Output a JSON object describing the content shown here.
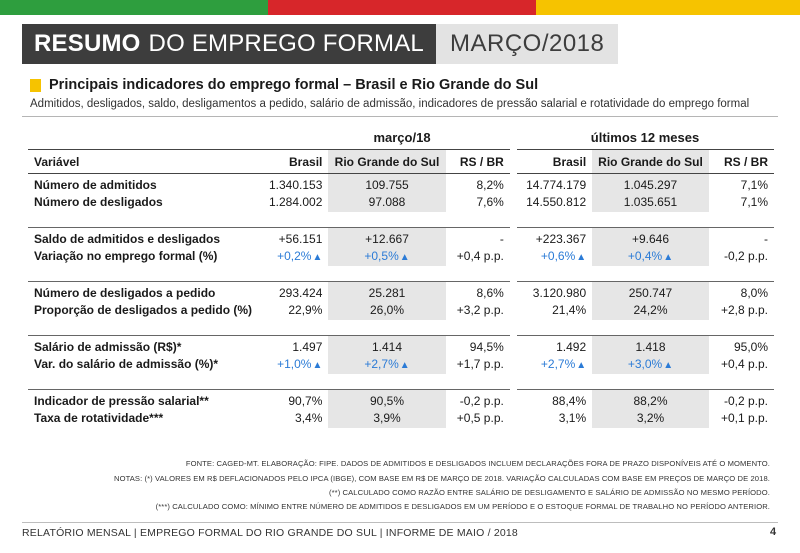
{
  "header": {
    "title_bold": "RESUMO",
    "title_rest": "DO EMPREGO FORMAL",
    "period": "MARÇO/2018"
  },
  "section": {
    "title": "Principais indicadores do emprego formal – Brasil e Rio Grande do Sul",
    "subtitle": "Admitidos, desligados, saldo, desligamentos a pedido, salário de admissão, indicadores de pressão salarial e rotatividade do emprego formal"
  },
  "table": {
    "group_month": "março/18",
    "group_12m": "últimos 12 meses",
    "headers": [
      "Variável",
      "Brasil",
      "Rio Grande do Sul",
      "RS / BR",
      "Brasil",
      "Rio Grande do Sul",
      "RS / BR"
    ],
    "groups": [
      [
        {
          "label": "Número de admitidos",
          "v": [
            "1.340.153",
            "109.755",
            "8,2%",
            "14.774.179",
            "1.045.297",
            "7,1%"
          ]
        },
        {
          "label": "Número de desligados",
          "v": [
            "1.284.002",
            "97.088",
            "7,6%",
            "14.550.812",
            "1.035.651",
            "7,1%"
          ]
        }
      ],
      [
        {
          "label": "Saldo de admitidos e desligados",
          "v": [
            "+56.151",
            "+12.667",
            "-",
            "+223.367",
            "+9.646",
            "-"
          ]
        },
        {
          "label": "Variação no emprego formal (%)",
          "v": [
            "+0,2%",
            "+0,5%",
            "+0,4 p.p.",
            "+0,6%",
            "+0,4%",
            "-0,2 p.p."
          ],
          "up": [
            true,
            true,
            false,
            true,
            true,
            false
          ]
        }
      ],
      [
        {
          "label": "Número de desligados a pedido",
          "v": [
            "293.424",
            "25.281",
            "8,6%",
            "3.120.980",
            "250.747",
            "8,0%"
          ]
        },
        {
          "label": "Proporção de desligados a pedido (%)",
          "v": [
            "22,9%",
            "26,0%",
            "+3,2 p.p.",
            "21,4%",
            "24,2%",
            "+2,8 p.p."
          ]
        }
      ],
      [
        {
          "label": "Salário de admissão (R$)*",
          "v": [
            "1.497",
            "1.414",
            "94,5%",
            "1.492",
            "1.418",
            "95,0%"
          ]
        },
        {
          "label": "Var. do salário de admissão (%)*",
          "v": [
            "+1,0%",
            "+2,7%",
            "+1,7 p.p.",
            "+2,7%",
            "+3,0%",
            "+0,4 p.p."
          ],
          "up": [
            true,
            true,
            false,
            true,
            true,
            false
          ]
        }
      ],
      [
        {
          "label": "Indicador de pressão salarial**",
          "v": [
            "90,7%",
            "90,5%",
            "-0,2 p.p.",
            "88,4%",
            "88,2%",
            "-0,2 p.p."
          ]
        },
        {
          "label": "Taxa de rotatividade***",
          "v": [
            "3,4%",
            "3,9%",
            "+0,5 p.p.",
            "3,1%",
            "3,2%",
            "+0,1 p.p."
          ]
        }
      ]
    ]
  },
  "notes": [
    "FONTE: CAGED-MT. ELABORAÇÃO: FIPE. DADOS DE ADMITIDOS E DESLIGADOS INCLUEM DECLARAÇÕES FORA DE PRAZO DISPONÍVEIS ATÉ O MOMENTO.",
    "NOTAS: (*) VALORES EM R$ DEFLACIONADOS PELO IPCA (IBGE), COM BASE EM R$ DE MARÇO DE 2018. VARIAÇÃO CALCULADAS COM BASE EM PREÇOS DE MARÇO DE 2018.",
    "(**) CALCULADO COMO RAZÃO ENTRE SALÁRIO DE DESLIGAMENTO E SALÁRIO DE ADMISSÃO NO MESMO PERÍODO.",
    "(***) CALCULADO COMO: MÍNIMO ENTRE NÚMERO DE ADMITIDOS E DESLIGADOS EM UM PERÍODO E O ESTOQUE FORMAL DE TRABALHO NO PERÍODO ANTERIOR."
  ],
  "footer": {
    "text": "RELATÓRIO MENSAL | EMPREGO FORMAL DO RIO GRANDE DO SUL | INFORME DE MAIO / 2018",
    "page": "4"
  },
  "colors": {
    "stripe_green": "#2e9e3e",
    "stripe_red": "#d7262a",
    "stripe_yellow": "#f6c300",
    "title_dark": "#3d3d3d",
    "positive_blue": "#2b7bd6"
  }
}
